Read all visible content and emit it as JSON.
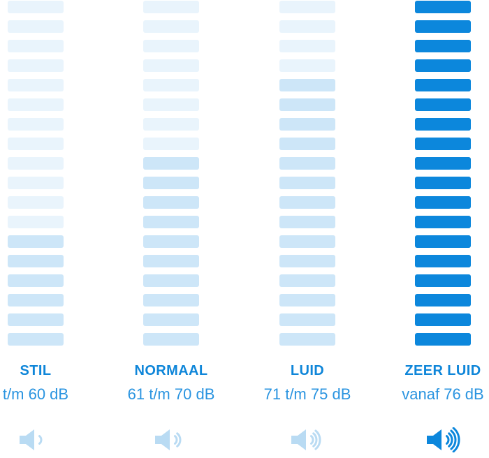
{
  "chart_data": {
    "type": "bar",
    "categories": [
      "STIL",
      "NORMAAL",
      "LUID",
      "ZEER LUID"
    ],
    "category_ranges": [
      "t/m 60 dB",
      "61 t/m 70 dB",
      "71 t/m 75 dB",
      "vanaf 76 dB"
    ],
    "unit": "dB",
    "segments_per_column": 18,
    "highlighted_segment_counts_from_bottom": [
      6,
      10,
      14,
      18
    ],
    "speaker_wave_counts": [
      1,
      2,
      3,
      4
    ],
    "grid": false,
    "legend_position": "none"
  },
  "columns": [
    {
      "title": "STIL",
      "range": "t/m 60 dB",
      "bars_total": 18,
      "highlight_from": 12,
      "shade": "medium",
      "waves": 1,
      "icon_solid": false
    },
    {
      "title": "NORMAAL",
      "range": "61 t/m 70 dB",
      "bars_total": 18,
      "highlight_from": 8,
      "shade": "medium",
      "waves": 2,
      "icon_solid": false
    },
    {
      "title": "LUID",
      "range": "71 t/m 75 dB",
      "bars_total": 18,
      "highlight_from": 4,
      "shade": "medium",
      "waves": 3,
      "icon_solid": false
    },
    {
      "title": "ZEER LUID",
      "range": "vanaf 76 dB",
      "bars_total": 18,
      "highlight_from": 0,
      "shade": "solid",
      "waves": 4,
      "icon_solid": true
    }
  ],
  "colors": {
    "bar_light": "#e9f4fc",
    "bar_medium": "#cde6f8",
    "bar_solid": "#0c87dc",
    "title_text": "#0f86d9",
    "range_text": "#2a94e0",
    "icon_light": "#b9dbf3",
    "icon_solid": "#0c87dc"
  }
}
